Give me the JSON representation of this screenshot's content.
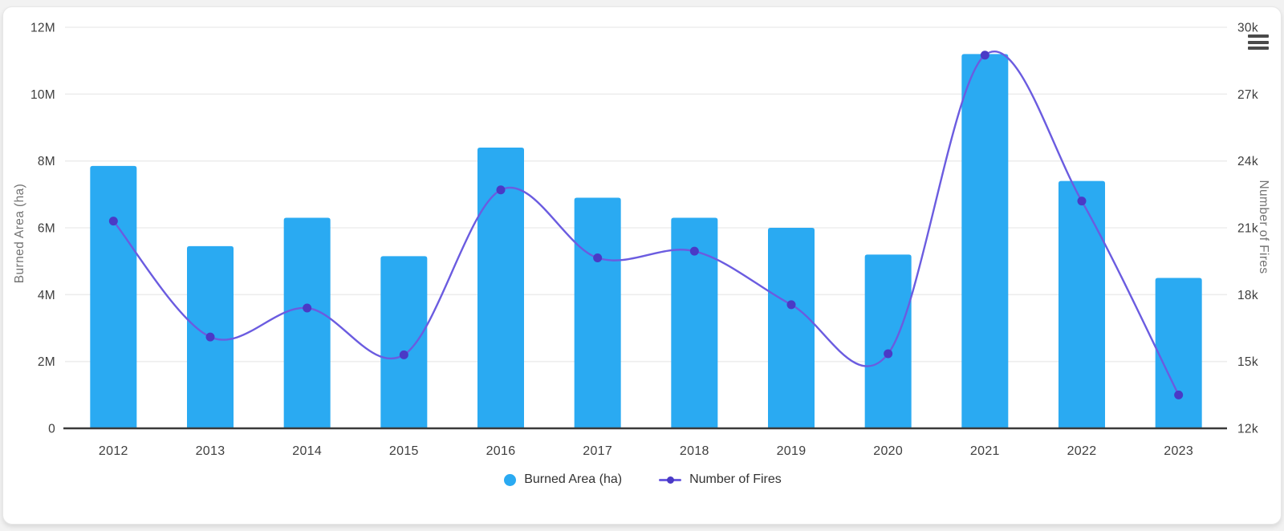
{
  "page": {
    "background": "#f2f2f2",
    "card_background": "#ffffff"
  },
  "toolbar": {
    "menu_icon": "hamburger-menu-icon"
  },
  "chart_data": {
    "type": "bar",
    "subtype": "bar+line dual axis",
    "categories": [
      "2012",
      "2013",
      "2014",
      "2015",
      "2016",
      "2017",
      "2018",
      "2019",
      "2020",
      "2021",
      "2022",
      "2023"
    ],
    "series": [
      {
        "name": "Burned Area (ha)",
        "type": "bar",
        "axis": "left",
        "color": "#2aaaf2",
        "values": [
          7850000,
          5450000,
          6300000,
          5150000,
          8400000,
          6900000,
          6300000,
          6000000,
          5200000,
          11200000,
          7400000,
          4500000
        ]
      },
      {
        "name": "Number of Fires",
        "type": "line",
        "axis": "right",
        "color": "#6b5ce0",
        "point_color": "#4a3ac6",
        "values": [
          21300,
          16100,
          17400,
          15300,
          22700,
          19650,
          19950,
          17550,
          15350,
          28750,
          22200,
          13500
        ]
      }
    ],
    "left_axis": {
      "label": "Burned Area (ha)",
      "min": 0,
      "max": 12000000,
      "ticks": [
        "0",
        "2M",
        "4M",
        "6M",
        "8M",
        "10M",
        "12M"
      ]
    },
    "right_axis": {
      "label": "Number of Fires",
      "min": 12000,
      "max": 30000,
      "ticks": [
        "12k",
        "15k",
        "18k",
        "21k",
        "24k",
        "27k",
        "30k"
      ]
    },
    "grid": "horizontal only",
    "legend_position": "bottom",
    "styles": {
      "grid_color": "#ededed",
      "baseline_color": "#3a3a3a",
      "tick_text_color": "#3e3e3e",
      "axis_title_color": "#737373",
      "legend_text_color": "#333333"
    }
  },
  "legend": {
    "items": [
      {
        "label": "Burned Area (ha)",
        "marker": "circle",
        "color": "#2aaaf2"
      },
      {
        "label": "Number of Fires",
        "marker": "line-dot",
        "color": "#6b5ce0",
        "dot_color": "#4a3ac6"
      }
    ]
  }
}
